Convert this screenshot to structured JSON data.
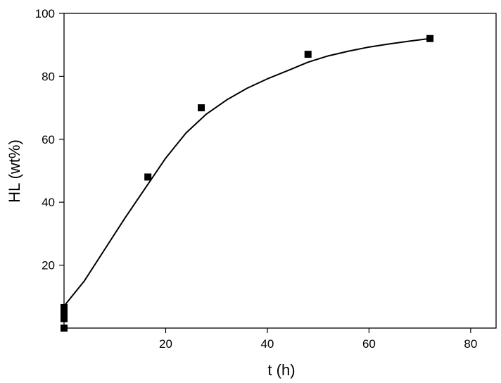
{
  "chart_data": {
    "type": "scatter",
    "xlabel": "t (h)",
    "ylabel": "HL (wt%)",
    "xlim": [
      0,
      85
    ],
    "ylim": [
      0,
      100
    ],
    "x_ticks": [
      20,
      40,
      60,
      80
    ],
    "y_ticks": [
      20,
      40,
      60,
      80,
      100
    ],
    "grid": false,
    "legend": "none",
    "series": [
      {
        "type": "scatter",
        "marker": "square",
        "color": "#000000",
        "points": [
          {
            "x": 0,
            "y": 0
          },
          {
            "x": 0,
            "y": 3
          },
          {
            "x": 0,
            "y": 5
          },
          {
            "x": 0,
            "y": 6.5
          },
          {
            "x": 16.5,
            "y": 48
          },
          {
            "x": 27,
            "y": 70
          },
          {
            "x": 48,
            "y": 87
          },
          {
            "x": 72,
            "y": 92
          }
        ]
      },
      {
        "type": "line",
        "color": "#000000",
        "points": [
          {
            "x": 0,
            "y": 7
          },
          {
            "x": 4,
            "y": 15
          },
          {
            "x": 8,
            "y": 25
          },
          {
            "x": 12,
            "y": 35
          },
          {
            "x": 16,
            "y": 44.5
          },
          {
            "x": 20,
            "y": 54
          },
          {
            "x": 24,
            "y": 62
          },
          {
            "x": 28,
            "y": 68
          },
          {
            "x": 32,
            "y": 72.5
          },
          {
            "x": 36,
            "y": 76.2
          },
          {
            "x": 40,
            "y": 79.2
          },
          {
            "x": 44,
            "y": 81.8
          },
          {
            "x": 48,
            "y": 84.5
          },
          {
            "x": 52,
            "y": 86.5
          },
          {
            "x": 56,
            "y": 88
          },
          {
            "x": 60,
            "y": 89.3
          },
          {
            "x": 64,
            "y": 90.3
          },
          {
            "x": 68,
            "y": 91.2
          },
          {
            "x": 72,
            "y": 92
          }
        ]
      }
    ]
  }
}
